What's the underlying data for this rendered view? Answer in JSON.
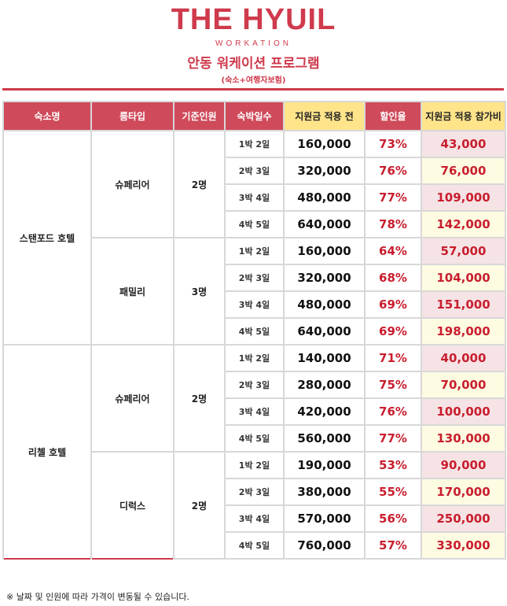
{
  "header": {
    "brand": "THE HYUIL",
    "sub": "WORKATION",
    "title": "안동 워케이션 프로그램",
    "note": "(숙소+여행자보험)"
  },
  "table": {
    "headers": [
      "숙소명",
      "룸타입",
      "기준인원",
      "숙박일수",
      "지원금 적용 전",
      "할인율",
      "지원금 적용 참가비"
    ],
    "hotels": [
      {
        "name": "스탠포드 호텔",
        "rooms": [
          {
            "type": "슈페리어",
            "persons": "2명",
            "rows": [
              [
                "1박 2일",
                "160,000",
                "73%",
                "43,000"
              ],
              [
                "2박 3일",
                "320,000",
                "76%",
                "76,000"
              ],
              [
                "3박 4일",
                "480,000",
                "77%",
                "109,000"
              ],
              [
                "4박 5일",
                "640,000",
                "78%",
                "142,000"
              ]
            ]
          },
          {
            "type": "패밀리",
            "persons": "3명",
            "rows": [
              [
                "1박 2일",
                "160,000",
                "64%",
                "57,000"
              ],
              [
                "2박 3일",
                "320,000",
                "68%",
                "104,000"
              ],
              [
                "3박 4일",
                "480,000",
                "69%",
                "151,000"
              ],
              [
                "4박 5일",
                "640,000",
                "69%",
                "198,000"
              ]
            ]
          }
        ]
      },
      {
        "name": "리첼 호텔",
        "rooms": [
          {
            "type": "슈페리어",
            "persons": "2명",
            "rows": [
              [
                "1박 2일",
                "140,000",
                "71%",
                "40,000"
              ],
              [
                "2박 3일",
                "280,000",
                "75%",
                "70,000"
              ],
              [
                "3박 4일",
                "420,000",
                "76%",
                "100,000"
              ],
              [
                "4박 5일",
                "560,000",
                "77%",
                "130,000"
              ]
            ]
          },
          {
            "type": "디럭스",
            "persons": "2명",
            "rows": [
              [
                "1박 2일",
                "190,000",
                "53%",
                "90,000"
              ],
              [
                "2박 3일",
                "380,000",
                "55%",
                "170,000"
              ],
              [
                "3박 4일",
                "570,000",
                "56%",
                "250,000"
              ],
              [
                "4박 5일",
                "760,000",
                "57%",
                "330,000"
              ]
            ]
          }
        ]
      }
    ]
  },
  "footer": "※ 날짜 및 인원에 따라 가격이 변동될 수 있습니다."
}
